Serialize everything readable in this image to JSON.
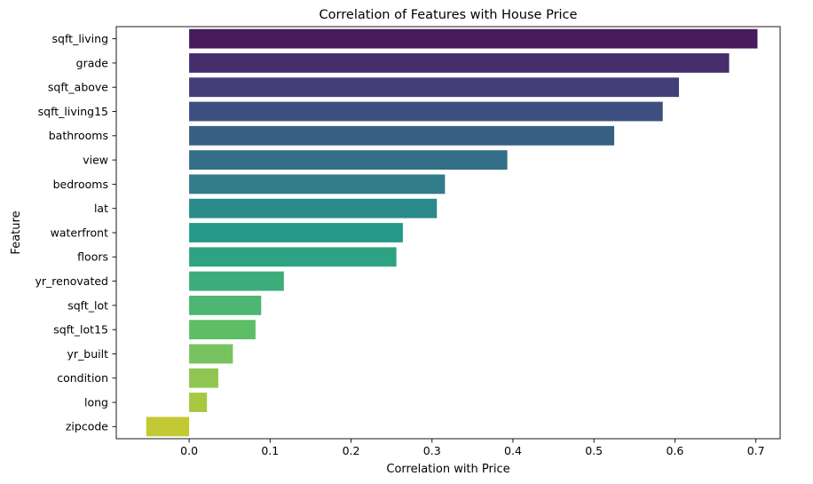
{
  "chart_data": {
    "type": "bar",
    "orientation": "horizontal",
    "title": "Correlation of Features with House Price",
    "xlabel": "Correlation with Price",
    "ylabel": "Feature",
    "xlim": [
      -0.09,
      0.73
    ],
    "xticks": [
      "0.0",
      "0.1",
      "0.2",
      "0.3",
      "0.4",
      "0.5",
      "0.6",
      "0.7"
    ],
    "xtick_values": [
      0,
      0.1,
      0.2,
      0.3,
      0.4,
      0.5,
      0.6,
      0.7
    ],
    "grid": false,
    "colormap": "viridis",
    "categories": [
      "sqft_living",
      "grade",
      "sqft_above",
      "sqft_living15",
      "bathrooms",
      "view",
      "bedrooms",
      "lat",
      "waterfront",
      "floors",
      "yr_renovated",
      "sqft_lot",
      "sqft_lot15",
      "yr_built",
      "condition",
      "long",
      "zipcode"
    ],
    "values": [
      0.702,
      0.667,
      0.605,
      0.585,
      0.525,
      0.393,
      0.316,
      0.306,
      0.264,
      0.256,
      0.117,
      0.089,
      0.082,
      0.054,
      0.036,
      0.022,
      -0.053
    ],
    "colors": [
      "#481B5C",
      "#462D6C",
      "#433E78",
      "#3E4F7F",
      "#386083",
      "#336F86",
      "#307C88",
      "#2B8A8A",
      "#269889",
      "#2EA383",
      "#3CAC7B",
      "#4CB672",
      "#5EBE66",
      "#77C35F",
      "#8FC652",
      "#A7C83F",
      "#C3C934"
    ]
  }
}
